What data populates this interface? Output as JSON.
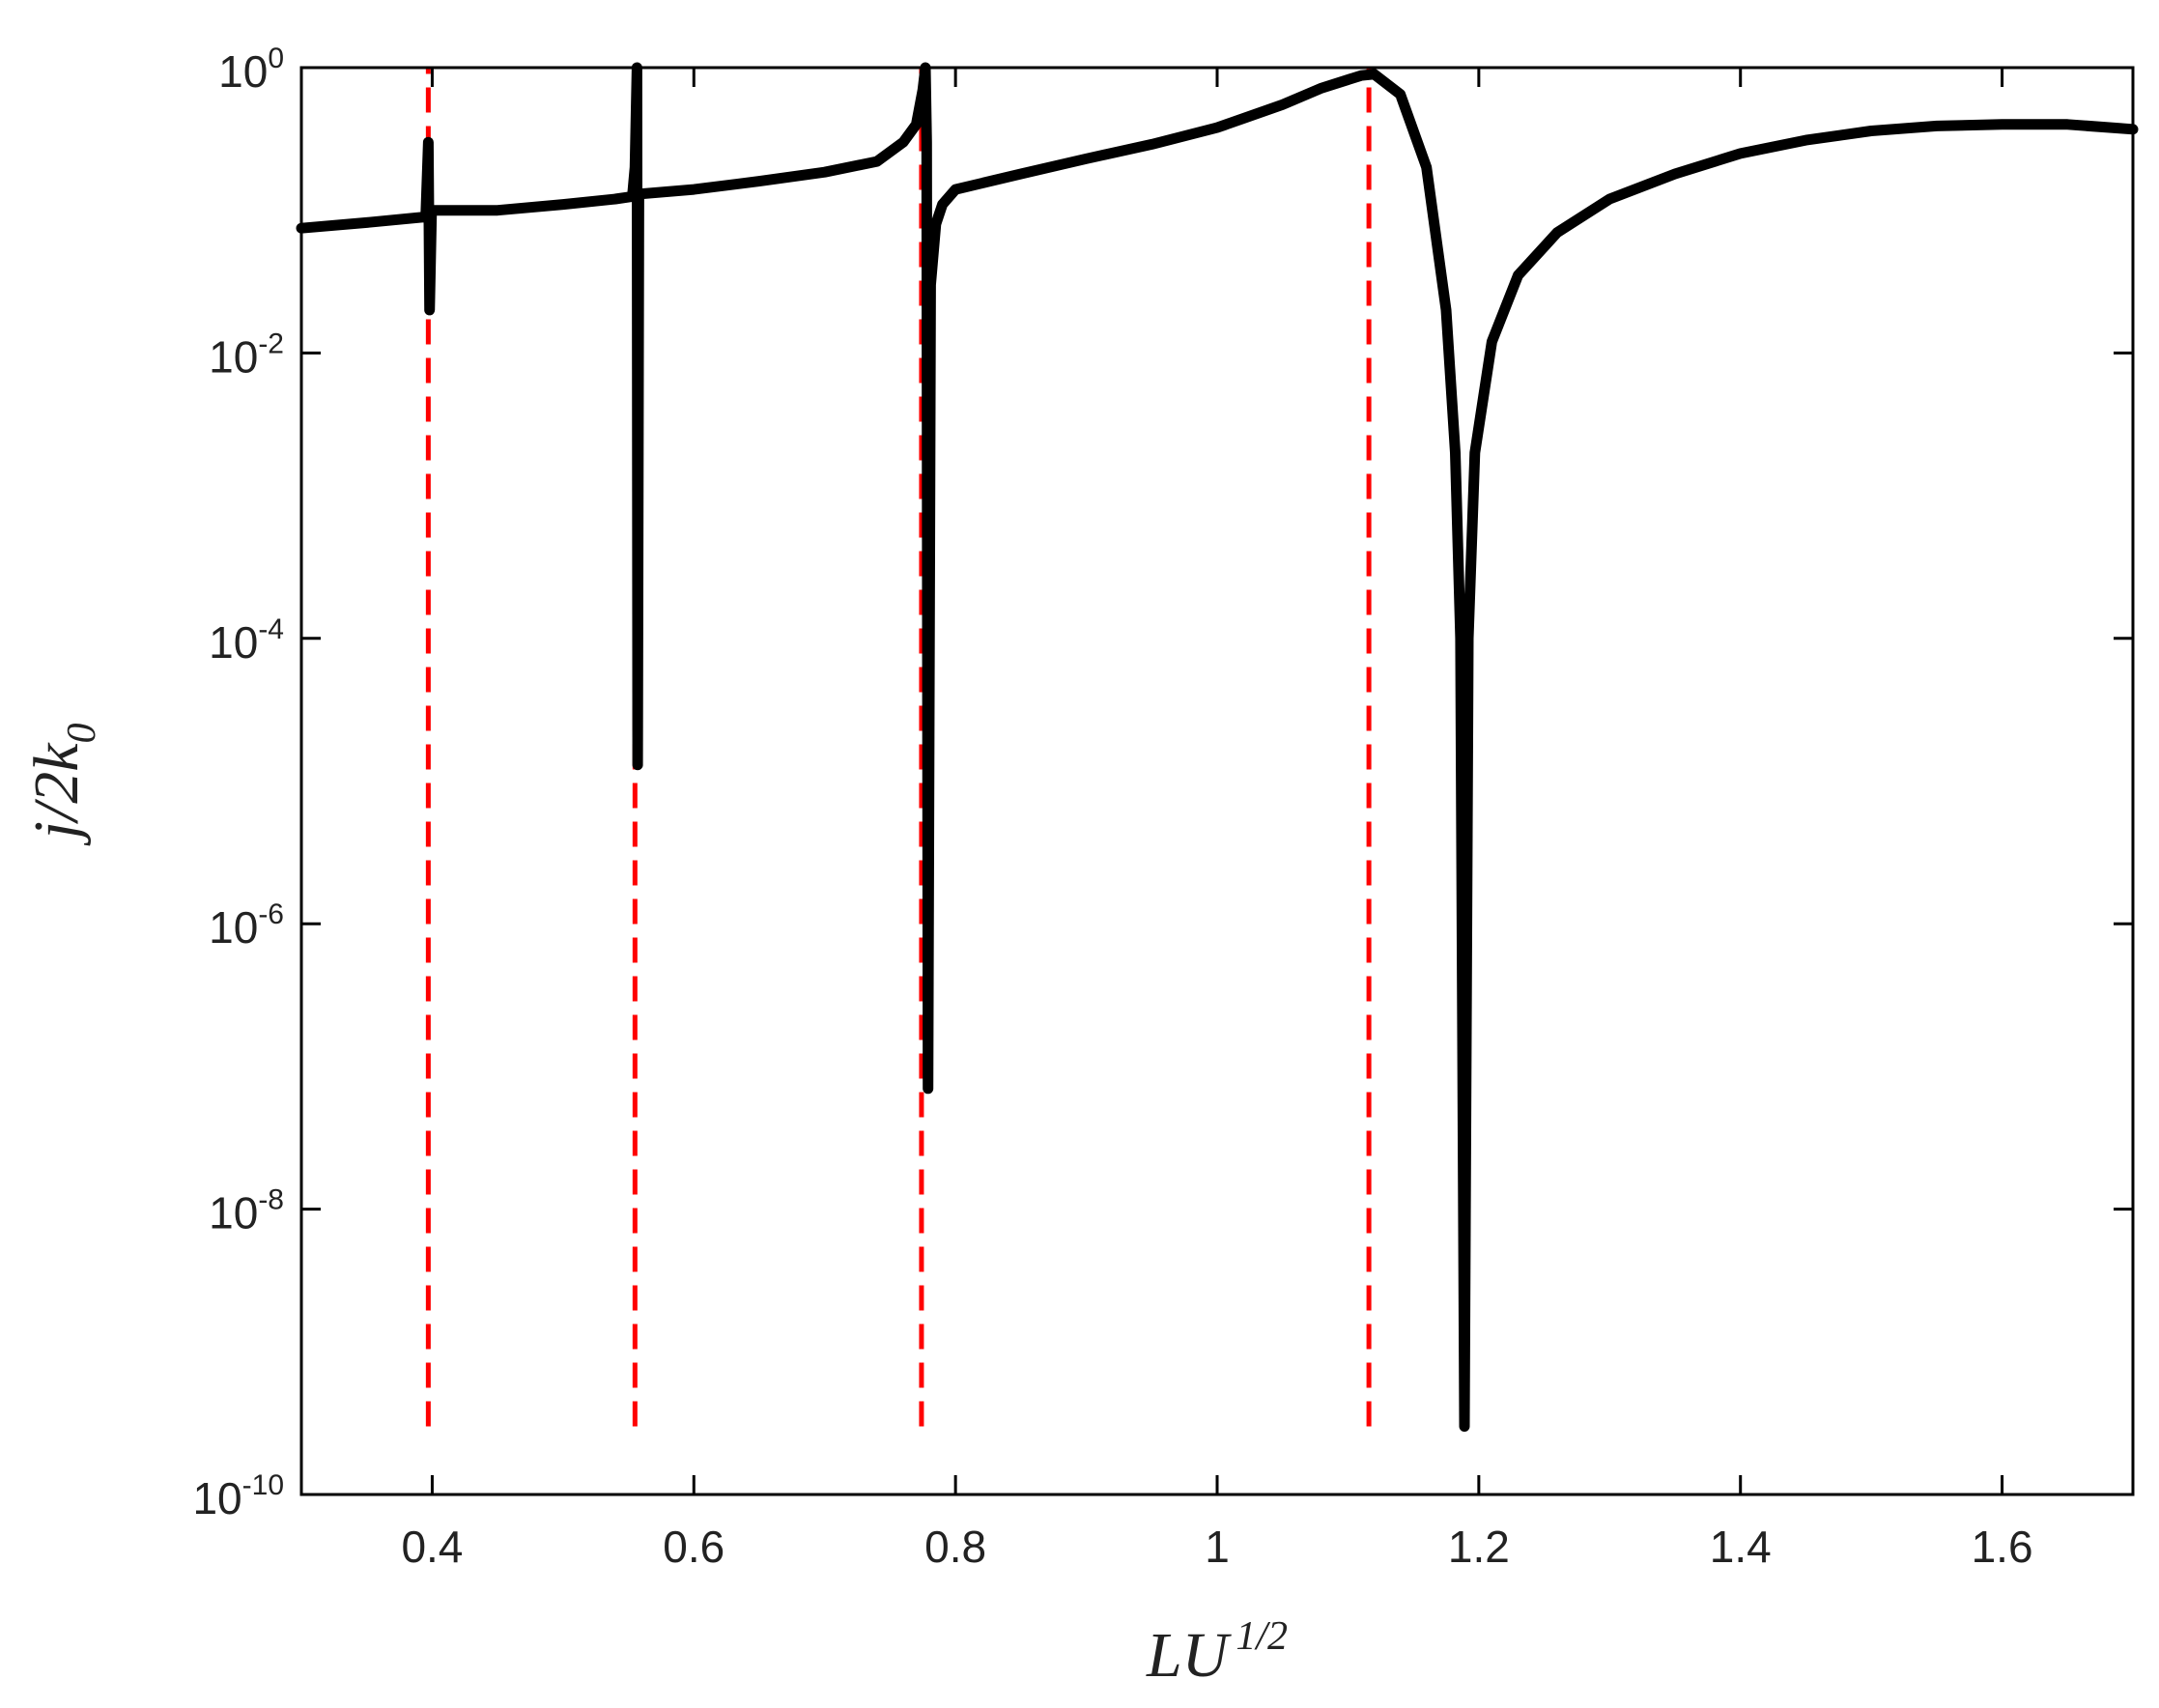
{
  "chart_data": {
    "type": "line",
    "title": "",
    "xlabel": {
      "base": "LU",
      "sup": "1/2"
    },
    "ylabel": {
      "base": "j/2k",
      "sub": "0"
    },
    "xlim": [
      0.3,
      1.7
    ],
    "ylim": [
      1e-10,
      1
    ],
    "yscale": "log",
    "grid": false,
    "xticks": [
      {
        "value": 0.4,
        "label": "0.4"
      },
      {
        "value": 0.6,
        "label": "0.6"
      },
      {
        "value": 0.8,
        "label": "0.8"
      },
      {
        "value": 1.0,
        "label": "1"
      },
      {
        "value": 1.2,
        "label": "1.2"
      },
      {
        "value": 1.4,
        "label": "1.4"
      },
      {
        "value": 1.6,
        "label": "1.6"
      }
    ],
    "yticks": [
      {
        "value": 1e-10,
        "base": "10",
        "exp": "-10"
      },
      {
        "value": 1e-08,
        "base": "10",
        "exp": "-8"
      },
      {
        "value": 1e-06,
        "base": "10",
        "exp": "-6"
      },
      {
        "value": 0.0001,
        "base": "10",
        "exp": "-4"
      },
      {
        "value": 0.01,
        "base": "10",
        "exp": "-2"
      },
      {
        "value": 1,
        "base": "10",
        "exp": "0"
      }
    ],
    "series": [
      {
        "style": "solid",
        "color": "#000000",
        "points": [
          [
            0.3,
            0.075
          ],
          [
            0.35,
            0.082
          ],
          [
            0.395,
            0.09
          ],
          [
            0.397,
            0.3
          ],
          [
            0.398,
            0.02
          ],
          [
            0.3995,
            0.1
          ],
          [
            0.45,
            0.1
          ],
          [
            0.5,
            0.11
          ],
          [
            0.54,
            0.12
          ],
          [
            0.553,
            0.125
          ],
          [
            0.555,
            0.2
          ],
          [
            0.5565,
            1.0
          ],
          [
            0.557,
            1.3e-05
          ],
          [
            0.558,
            0.13
          ],
          [
            0.6,
            0.14
          ],
          [
            0.65,
            0.16
          ],
          [
            0.7,
            0.185
          ],
          [
            0.74,
            0.22
          ],
          [
            0.76,
            0.3
          ],
          [
            0.77,
            0.4
          ],
          [
            0.775,
            0.7
          ],
          [
            0.777,
            1.0
          ],
          [
            0.778,
            0.3
          ],
          [
            0.779,
            7e-08
          ],
          [
            0.781,
            0.03
          ],
          [
            0.785,
            0.08
          ],
          [
            0.79,
            0.11
          ],
          [
            0.8,
            0.14
          ],
          [
            0.85,
            0.18
          ],
          [
            0.9,
            0.23
          ],
          [
            0.95,
            0.29
          ],
          [
            1.0,
            0.38
          ],
          [
            1.05,
            0.55
          ],
          [
            1.08,
            0.72
          ],
          [
            1.11,
            0.88
          ],
          [
            1.12,
            0.9
          ],
          [
            1.14,
            0.65
          ],
          [
            1.16,
            0.2
          ],
          [
            1.175,
            0.02
          ],
          [
            1.182,
            0.002
          ],
          [
            1.186,
            0.0001
          ],
          [
            1.189,
            3e-10
          ],
          [
            1.192,
            0.0001
          ],
          [
            1.197,
            0.002
          ],
          [
            1.21,
            0.012
          ],
          [
            1.23,
            0.035
          ],
          [
            1.26,
            0.07
          ],
          [
            1.3,
            0.12
          ],
          [
            1.35,
            0.18
          ],
          [
            1.4,
            0.25
          ],
          [
            1.45,
            0.31
          ],
          [
            1.5,
            0.36
          ],
          [
            1.55,
            0.39
          ],
          [
            1.6,
            0.4
          ],
          [
            1.65,
            0.4
          ],
          [
            1.7,
            0.37
          ]
        ]
      }
    ],
    "reference_lines": [
      {
        "x": 0.397,
        "ymin": 3e-10,
        "ymax": 1,
        "style": "dashed",
        "color": "#ff0000"
      },
      {
        "x": 0.555,
        "ymin": 3e-10,
        "ymax": 1,
        "style": "dashed",
        "color": "#ff0000"
      },
      {
        "x": 0.774,
        "ymin": 3e-10,
        "ymax": 1,
        "style": "dashed",
        "color": "#ff0000"
      },
      {
        "x": 1.116,
        "ymin": 3e-10,
        "ymax": 1,
        "style": "dashed",
        "color": "#ff0000"
      }
    ]
  }
}
